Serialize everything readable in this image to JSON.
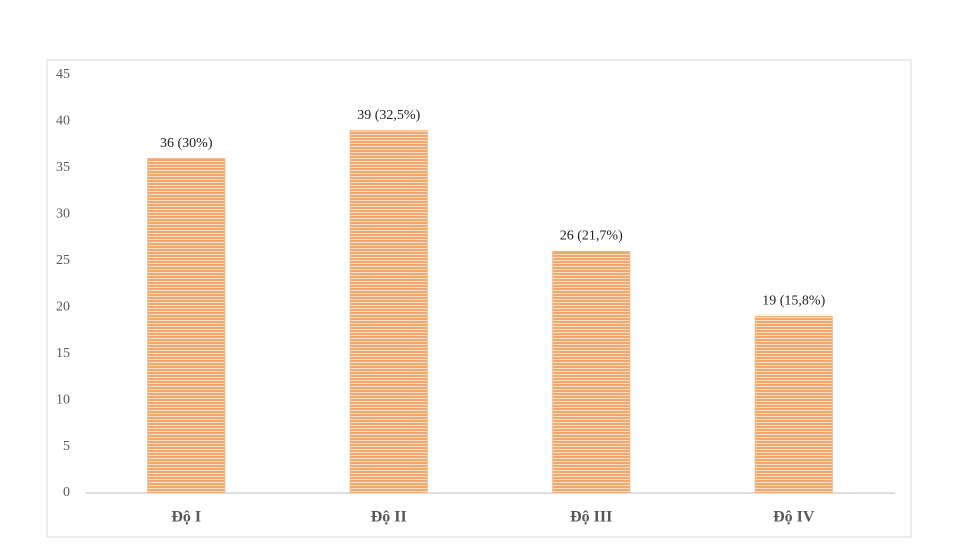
{
  "chart_data": {
    "type": "bar",
    "categories": [
      "Độ I",
      "Độ II",
      "Độ III",
      "Độ IV"
    ],
    "values": [
      36,
      39,
      26,
      19
    ],
    "value_labels": [
      "36 (30%)",
      "39 (32,5%)",
      "26 (21,7%)",
      "19 (15,8%)"
    ],
    "color": "#f4b183",
    "ylim": [
      0,
      45
    ],
    "yticks": [
      0,
      5,
      10,
      15,
      20,
      25,
      30,
      35,
      40,
      45
    ],
    "grid": false
  }
}
